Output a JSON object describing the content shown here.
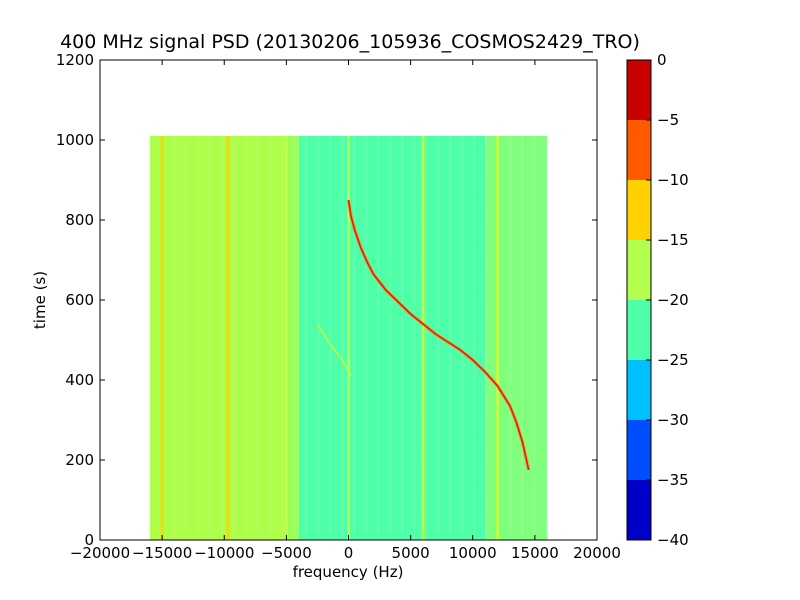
{
  "chart_data": {
    "type": "heatmap",
    "title": "400 MHz signal PSD (20130206_105936_COSMOS2429_TRO)",
    "xlabel": "frequency (Hz)",
    "ylabel": "time (s)",
    "xlim": [
      -20000,
      20000
    ],
    "ylim": [
      0,
      1200
    ],
    "xticks": [
      -20000,
      -15000,
      -10000,
      -5000,
      0,
      5000,
      10000,
      15000,
      20000
    ],
    "xtick_labels": [
      "−20000",
      "−15000",
      "−10000",
      "−5000",
      "0",
      "5000",
      "10000",
      "15000",
      "20000"
    ],
    "yticks": [
      0,
      200,
      400,
      600,
      800,
      1000,
      1200
    ],
    "ytick_labels": [
      "0",
      "200",
      "400",
      "600",
      "800",
      "1000",
      "1200"
    ],
    "data_extent": {
      "x": [
        -16000,
        16000
      ],
      "y": [
        0,
        1010
      ]
    },
    "colorbar": {
      "levels": [
        -40,
        -35,
        -30,
        -25,
        -20,
        -15,
        -10,
        -5,
        0
      ],
      "tick_labels": [
        "−40",
        "−35",
        "−30",
        "−25",
        "−20",
        "−15",
        "−10",
        "−5",
        "0"
      ],
      "colors": [
        "#0000c8",
        "#004cff",
        "#00bfff",
        "#4dffa8",
        "#b2ff4d",
        "#ffd100",
        "#ff5a00",
        "#c80000"
      ]
    },
    "band_levels": [
      {
        "x": [
          -16000,
          -5000
        ],
        "level_db": -17.5,
        "color": "#adff4a"
      },
      {
        "x": [
          -5000,
          -4000
        ],
        "level_db": -19,
        "color": "#9cff57"
      },
      {
        "x": [
          -4000,
          11000
        ],
        "level_db": -22.5,
        "color": "#4dffa8"
      },
      {
        "x": [
          11000,
          16000
        ],
        "level_db": -20,
        "color": "#80ff7d"
      }
    ],
    "spectral_lines": [
      {
        "x": -15000,
        "level_db": -12.5,
        "color": "#ffd100"
      },
      {
        "x": -9700,
        "level_db": -12.5,
        "color": "#ffd100"
      },
      {
        "x": -5000,
        "level_db": -15,
        "color": "#c8ff40"
      },
      {
        "x": 0,
        "level_db": -15,
        "color": "#c8ff40"
      },
      {
        "x": 6000,
        "level_db": -15,
        "color": "#c8ff40"
      },
      {
        "x": 12000,
        "level_db": -15,
        "color": "#c8ff40"
      }
    ],
    "faint_trace": {
      "level_db": -15,
      "points": [
        [
          -2500,
          540
        ],
        [
          -1500,
          490
        ],
        [
          -500,
          450
        ],
        [
          200,
          410
        ]
      ]
    },
    "signal_trace": {
      "level_db": -2.5,
      "color": "#e21a1a",
      "points": [
        [
          0,
          850
        ],
        [
          200,
          810
        ],
        [
          500,
          775
        ],
        [
          1000,
          730
        ],
        [
          1500,
          695
        ],
        [
          2000,
          665
        ],
        [
          3000,
          625
        ],
        [
          4000,
          595
        ],
        [
          5000,
          565
        ],
        [
          6000,
          540
        ],
        [
          7000,
          515
        ],
        [
          8000,
          495
        ],
        [
          9000,
          475
        ],
        [
          10000,
          450
        ],
        [
          11000,
          420
        ],
        [
          12000,
          385
        ],
        [
          13000,
          335
        ],
        [
          13500,
          295
        ],
        [
          14000,
          245
        ],
        [
          14500,
          175
        ]
      ]
    }
  }
}
